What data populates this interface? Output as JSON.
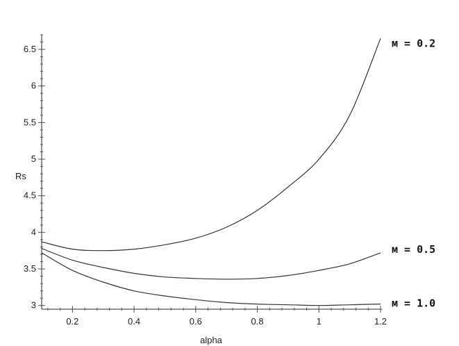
{
  "chart_data": {
    "type": "line",
    "title": "",
    "xlabel": "alpha",
    "ylabel": "Rs",
    "xlim": [
      0.1,
      1.2
    ],
    "ylim": [
      2.95,
      6.7
    ],
    "x_ticks": [
      0.2,
      0.4,
      0.6,
      0.8,
      1,
      1.2
    ],
    "x_tick_labels": [
      "0.2",
      "0.4",
      "0.6",
      "0.8",
      "1",
      "1.2"
    ],
    "y_ticks": [
      3,
      3.5,
      4,
      4.5,
      5,
      5.5,
      6,
      6.5
    ],
    "y_tick_labels": [
      "3",
      "3.5",
      "4",
      "4.5",
      "5",
      "5.5",
      "6",
      "6.5"
    ],
    "grid": false,
    "legend": "none",
    "series": [
      {
        "name": "м = 0.2",
        "x": [
          0.1,
          0.2,
          0.3,
          0.4,
          0.5,
          0.6,
          0.7,
          0.8,
          0.9,
          1.0,
          1.1,
          1.2
        ],
        "y": [
          3.87,
          3.77,
          3.75,
          3.77,
          3.83,
          3.92,
          4.07,
          4.3,
          4.62,
          5.0,
          5.6,
          6.65
        ]
      },
      {
        "name": "м = 0.5",
        "x": [
          0.1,
          0.2,
          0.3,
          0.4,
          0.5,
          0.6,
          0.7,
          0.8,
          0.9,
          1.0,
          1.1,
          1.2
        ],
        "y": [
          3.78,
          3.62,
          3.52,
          3.44,
          3.39,
          3.37,
          3.36,
          3.37,
          3.41,
          3.48,
          3.57,
          3.72
        ]
      },
      {
        "name": "м = 1.0",
        "x": [
          0.1,
          0.2,
          0.3,
          0.4,
          0.5,
          0.6,
          0.7,
          0.8,
          0.9,
          1.0,
          1.1,
          1.2
        ],
        "y": [
          3.72,
          3.48,
          3.32,
          3.2,
          3.13,
          3.08,
          3.04,
          3.02,
          3.01,
          3.0,
          3.01,
          3.02
        ]
      }
    ]
  }
}
